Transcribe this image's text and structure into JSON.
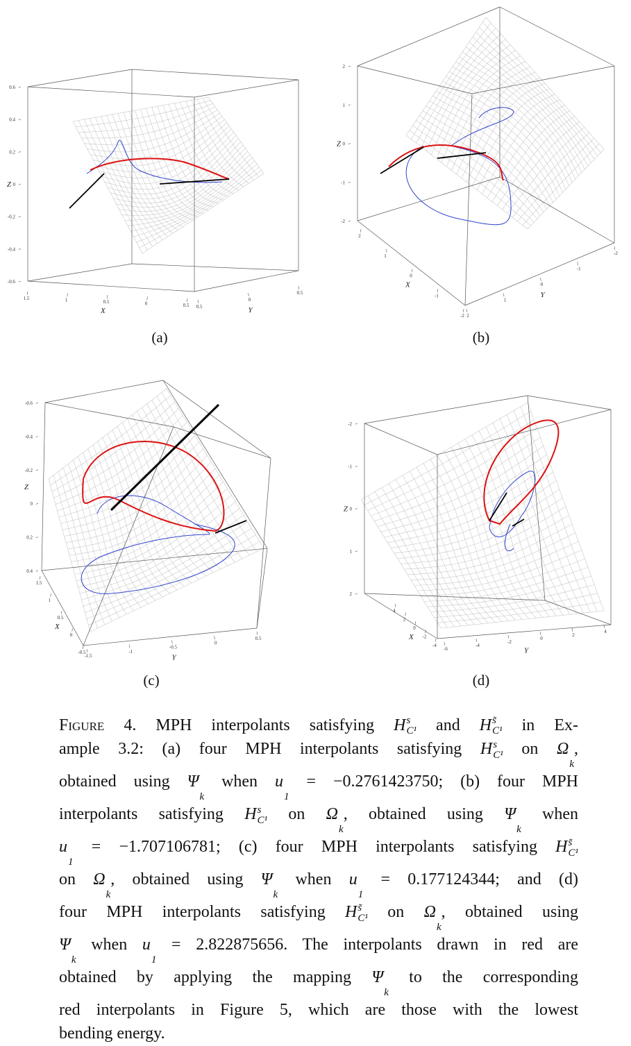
{
  "panels": [
    {
      "label": "(a)",
      "axes": {
        "x": "X",
        "y": "Y",
        "z": "Z"
      },
      "zticks": [
        "0.6",
        "0.4",
        "0.2",
        "0",
        "-0.2",
        "-0.4",
        "-0.6"
      ],
      "xticks": [
        "1.5",
        "1",
        "0.5",
        "0",
        "0.5"
      ],
      "yticks": [
        "0.5",
        "0",
        "0.5"
      ]
    },
    {
      "label": "(b)",
      "axes": {
        "x": "X",
        "y": "Y",
        "z": "Z"
      },
      "zticks": [
        "2",
        "1",
        "0",
        "-1",
        "-2"
      ],
      "xticks": [
        "2",
        "1",
        "0",
        "-1",
        "-2"
      ],
      "yticks": [
        "2",
        "1",
        "0",
        "-1",
        "-2"
      ]
    },
    {
      "label": "(c)",
      "axes": {
        "x": "X",
        "y": "Y",
        "z": "Z"
      },
      "zticks": [
        "-0.6",
        "-0.4",
        "-0.2",
        "0",
        "0.2",
        "0.4"
      ],
      "xticks": [
        "1.5",
        "1",
        "0.5",
        "0",
        "-0.5"
      ],
      "yticks": [
        "-1.5",
        "-1",
        "-0.5",
        "0",
        "0.5"
      ]
    },
    {
      "label": "(d)",
      "axes": {
        "x": "X",
        "y": "Y",
        "z": "Z"
      },
      "zticks": [
        "-2",
        "-1",
        "0",
        "1",
        "2"
      ],
      "xticks": [
        "4",
        "2",
        "0",
        "-2",
        "-4"
      ],
      "yticks": [
        "-6",
        "-4",
        "-2",
        "0",
        "2",
        "4"
      ]
    }
  ],
  "caption": {
    "label": "Figure 4.",
    "lines": [
      [
        " MPH interpolants satisfying ",
        {
          "b": "H",
          "sup": "s",
          "sub": "C¹"
        },
        " and ",
        {
          "b": "H",
          "sup": "s̃",
          "sub": "C¹"
        },
        " in Ex-"
      ],
      [
        "ample 3.2: (a) four MPH interpolants satisfying ",
        {
          "b": "H",
          "sup": "s",
          "sub": "C¹"
        },
        " on ",
        {
          "b": "Ω",
          "sub": "k"
        },
        ","
      ],
      [
        "obtained using ",
        {
          "b": "Ψ",
          "sub": "k"
        },
        " when ",
        {
          "b": "u",
          "sub": "1"
        },
        " = −0.2761423750; (b) four MPH"
      ],
      [
        "interpolants satisfying ",
        {
          "b": "H",
          "sup": "s",
          "sub": "C¹"
        },
        " on ",
        {
          "b": "Ω",
          "sub": "k"
        },
        ", obtained using ",
        {
          "b": "Ψ",
          "sub": "k"
        },
        " when"
      ],
      [
        {
          "b": "u",
          "sub": "1"
        },
        " = −1.707106781; (c) four MPH interpolants satisfying ",
        {
          "b": "H",
          "sup": "s̃",
          "sub": "C¹"
        }
      ],
      [
        "on ",
        {
          "b": "Ω",
          "sub": "k"
        },
        ", obtained using ",
        {
          "b": "Ψ",
          "sub": "k"
        },
        " when ",
        {
          "b": "u",
          "sub": "1"
        },
        " = 0.177124344; and (d)"
      ],
      [
        "four MPH interpolants satisfying ",
        {
          "b": "H",
          "sup": "s̃",
          "sub": "C¹"
        },
        " on ",
        {
          "b": "Ω",
          "sub": "k"
        },
        ", obtained using"
      ],
      [
        {
          "b": "Ψ",
          "sub": "k"
        },
        " when ",
        {
          "b": "u",
          "sub": "1"
        },
        " = 2.822875656. The interpolants drawn in red are"
      ],
      [
        "obtained by applying the mapping ",
        {
          "b": "Ψ",
          "sub": "k"
        },
        " to the corresponding"
      ],
      [
        "red interpolants in Figure 5, which are those with the lowest"
      ],
      [
        "bending energy."
      ]
    ]
  }
}
